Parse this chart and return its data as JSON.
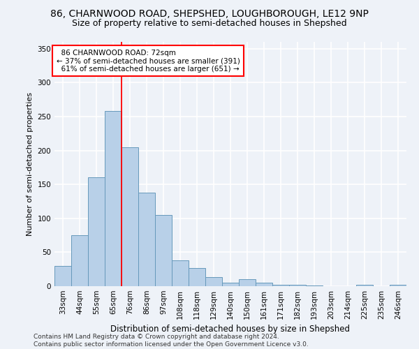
{
  "title1": "86, CHARNWOOD ROAD, SHEPSHED, LOUGHBOROUGH, LE12 9NP",
  "title2": "Size of property relative to semi-detached houses in Shepshed",
  "xlabel": "Distribution of semi-detached houses by size in Shepshed",
  "ylabel": "Number of semi-detached properties",
  "categories": [
    "33sqm",
    "44sqm",
    "55sqm",
    "65sqm",
    "76sqm",
    "86sqm",
    "97sqm",
    "108sqm",
    "118sqm",
    "129sqm",
    "140sqm",
    "150sqm",
    "161sqm",
    "171sqm",
    "182sqm",
    "193sqm",
    "203sqm",
    "214sqm",
    "225sqm",
    "235sqm",
    "246sqm"
  ],
  "values": [
    30,
    75,
    160,
    258,
    205,
    138,
    105,
    38,
    27,
    13,
    5,
    10,
    5,
    2,
    2,
    1,
    0,
    0,
    2,
    0,
    2
  ],
  "bar_color": "#b8d0e8",
  "bar_edge_color": "#6699bb",
  "vline_x_index": 3.5,
  "vline_color": "red",
  "annotation_line1": "  86 CHARNWOOD ROAD: 72sqm",
  "annotation_line2": "← 37% of semi-detached houses are smaller (391)",
  "annotation_line3": "  61% of semi-detached houses are larger (651) →",
  "annotation_box_color": "white",
  "annotation_box_edge_color": "red",
  "ylim": [
    0,
    360
  ],
  "yticks": [
    0,
    50,
    100,
    150,
    200,
    250,
    300,
    350
  ],
  "footer": "Contains HM Land Registry data © Crown copyright and database right 2024.\nContains public sector information licensed under the Open Government Licence v3.0.",
  "background_color": "#eef2f8",
  "grid_color": "white",
  "title1_fontsize": 10,
  "title2_fontsize": 9,
  "xlabel_fontsize": 8.5,
  "ylabel_fontsize": 8,
  "tick_fontsize": 7.5,
  "annotation_fontsize": 7.5,
  "footer_fontsize": 6.5
}
